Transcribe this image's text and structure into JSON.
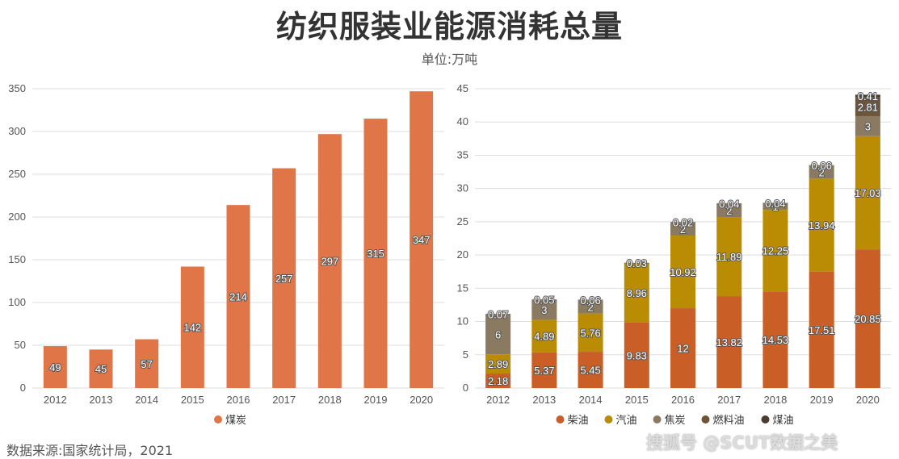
{
  "title": "纺织服装业能源消耗总量",
  "subtitle": "单位:万吨",
  "source": "数据来源:国家统计局，2021",
  "watermark": "搜狐号 @SCUT数据之美",
  "chart_data": [
    {
      "type": "bar",
      "categories": [
        "2012",
        "2013",
        "2014",
        "2015",
        "2016",
        "2017",
        "2018",
        "2019",
        "2020"
      ],
      "series": [
        {
          "name": "煤炭",
          "color": "#E07548",
          "values": [
            49,
            45,
            57,
            142,
            214,
            257,
            297,
            315,
            347
          ],
          "labels": [
            "49",
            "45",
            "57",
            "142",
            "214",
            "257",
            "297",
            "315",
            "347"
          ]
        }
      ],
      "ylim": [
        0,
        350
      ],
      "yticks": [
        "0",
        "50",
        "100",
        "150",
        "200",
        "250",
        "300",
        "350"
      ],
      "grid": true,
      "legend": "bottom"
    },
    {
      "type": "bar",
      "stacked": true,
      "categories": [
        "2012",
        "2013",
        "2014",
        "2015",
        "2016",
        "2017",
        "2018",
        "2019",
        "2020"
      ],
      "series": [
        {
          "name": "柴油",
          "color": "#C95F26",
          "values": [
            2.18,
            5.37,
            5.45,
            9.83,
            12,
            13.82,
            14.53,
            17.51,
            20.85
          ],
          "labels": [
            "2.18",
            "5.37",
            "5.45",
            "9.83",
            "12",
            "13.82",
            "14.53",
            "17.51",
            "20.85"
          ]
        },
        {
          "name": "汽油",
          "color": "#B98C03",
          "values": [
            2.89,
            4.89,
            5.76,
            8.96,
            10.92,
            11.89,
            12.25,
            13.94,
            17.03
          ],
          "labels": [
            "2.89",
            "4.89",
            "5.76",
            "8.96",
            "10.92",
            "11.89",
            "12.25",
            "13.94",
            "17.03"
          ]
        },
        {
          "name": "焦炭",
          "color": "#8B7A62",
          "values": [
            6,
            3,
            2,
            null,
            2,
            2,
            1,
            2,
            3
          ],
          "labels": [
            "6",
            "3",
            "2",
            "",
            "2",
            "2",
            "1",
            "2",
            "3"
          ]
        },
        {
          "name": "燃料油",
          "color": "#6E5438",
          "values": [
            null,
            null,
            null,
            null,
            null,
            null,
            null,
            null,
            2.81
          ],
          "labels": [
            "",
            "",
            "",
            "",
            "",
            "",
            "",
            "",
            "2.81"
          ]
        },
        {
          "name": "煤油",
          "color": "#4A3D2D",
          "values": [
            0.07,
            0.05,
            0.06,
            0.03,
            0.02,
            0.04,
            0.04,
            0.06,
            0.41
          ],
          "labels": [
            "0.07",
            "0.05",
            "0.06",
            "0.03",
            "0.02",
            "0.04",
            "0.04",
            "0.06",
            "0.41"
          ]
        }
      ],
      "ylim": [
        0,
        45
      ],
      "yticks": [
        "0",
        "5",
        "10",
        "15",
        "20",
        "25",
        "30",
        "35",
        "40",
        "45"
      ],
      "grid": true,
      "legend": "bottom"
    }
  ]
}
